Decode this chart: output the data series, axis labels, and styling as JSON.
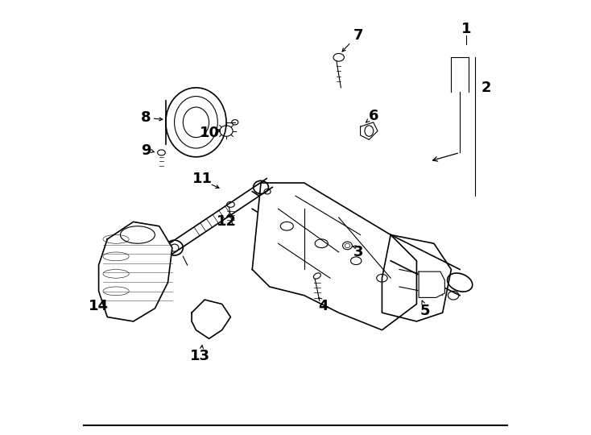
{
  "bg_color": "#ffffff",
  "line_color": "#000000",
  "label_color": "#000000",
  "font_size": 13,
  "fig_width": 7.34,
  "fig_height": 5.4,
  "dpi": 100
}
